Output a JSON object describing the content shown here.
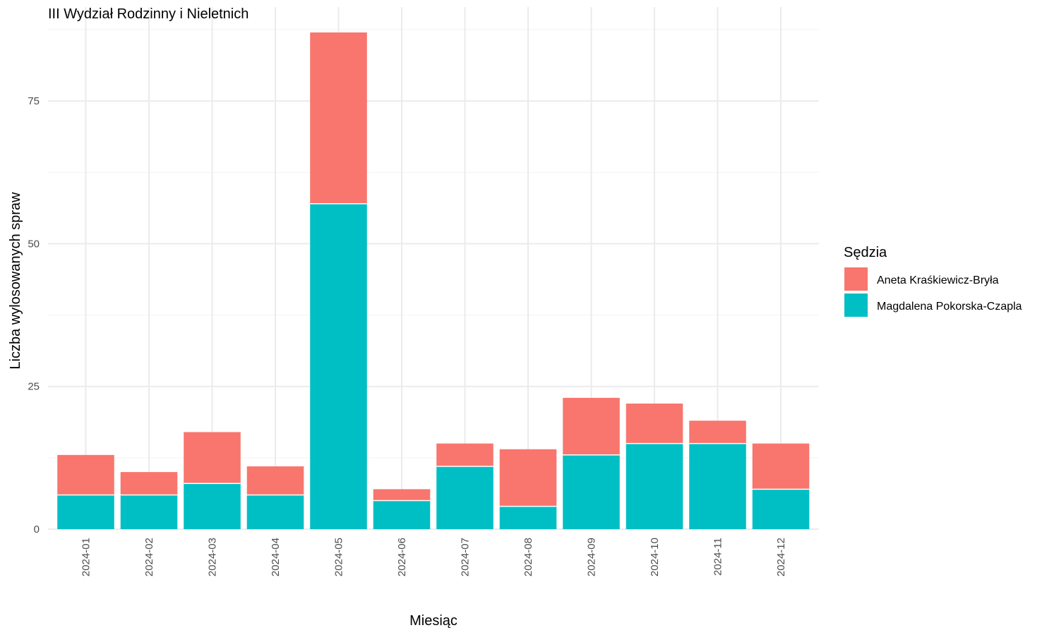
{
  "chart_data": {
    "type": "bar",
    "stacked": true,
    "title": "III Wydział Rodzinny i Nieletnich",
    "xlabel": "Miesiąc",
    "ylabel": "Liczba wylosowanych spraw",
    "ylim": [
      0,
      88
    ],
    "yticks": [
      0,
      25,
      50,
      75
    ],
    "grid": true,
    "legend": {
      "title": "Sędzia",
      "position": "right"
    },
    "categories": [
      "2024-01",
      "2024-02",
      "2024-03",
      "2024-04",
      "2024-05",
      "2024-06",
      "2024-07",
      "2024-08",
      "2024-09",
      "2024-10",
      "2024-11",
      "2024-12"
    ],
    "series": [
      {
        "name": "Magdalena Pokorska-Czapla",
        "color": "#00BFC4",
        "values": [
          6,
          6,
          8,
          6,
          57,
          5,
          11,
          4,
          13,
          15,
          15,
          7
        ]
      },
      {
        "name": "Aneta Kraśkiewicz-Bryła",
        "color": "#F8766D",
        "values": [
          7,
          4,
          9,
          5,
          30,
          2,
          4,
          10,
          10,
          7,
          4,
          8
        ]
      }
    ],
    "legend_order": [
      1,
      0
    ]
  }
}
